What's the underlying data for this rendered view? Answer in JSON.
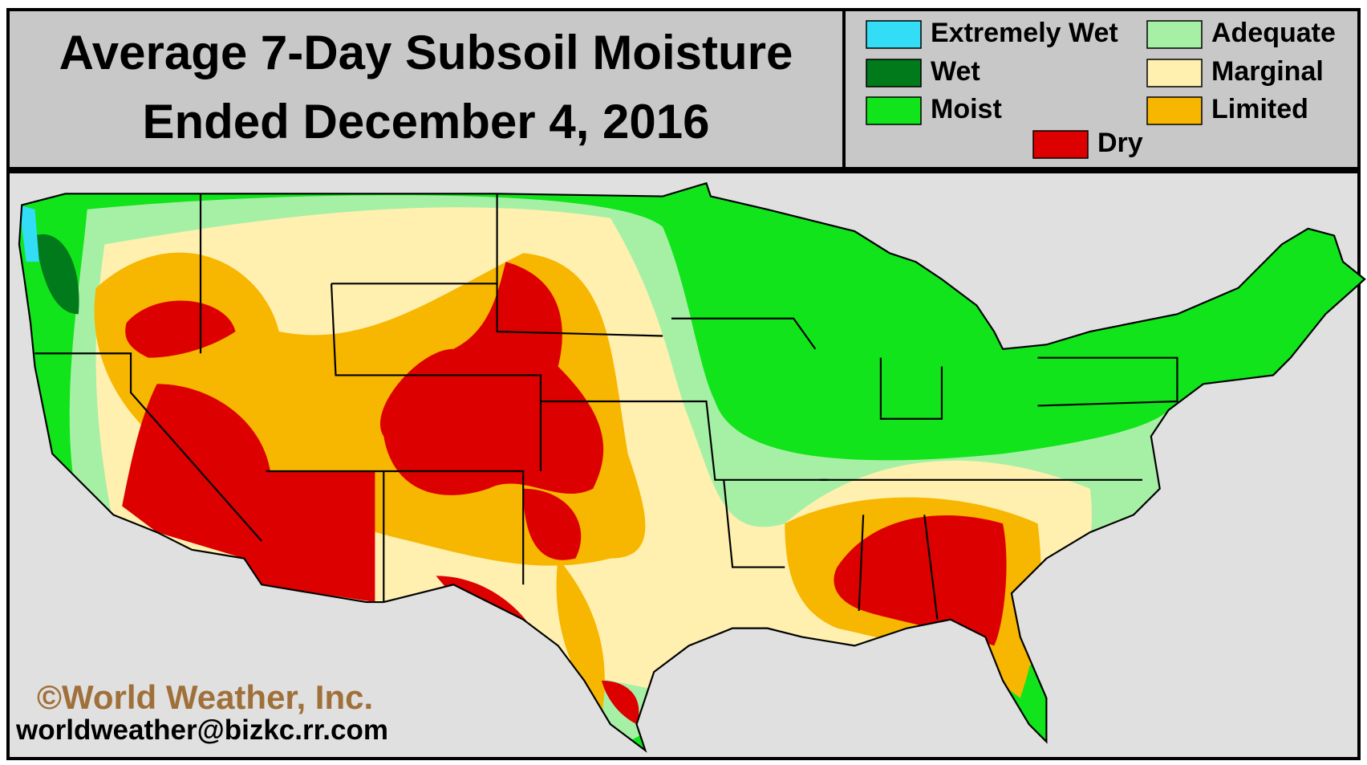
{
  "header": {
    "title_lines": [
      "Average 7-Day Subsoil Moisture",
      "Ended December 4, 2016"
    ]
  },
  "legend": [
    {
      "label": "Extremely Wet",
      "color": "#33ddf5"
    },
    {
      "label": "Wet",
      "color": "#007a1a"
    },
    {
      "label": "Moist",
      "color": "#11e41b"
    },
    {
      "label": "Adequate",
      "color": "#a6f0a6"
    },
    {
      "label": "Marginal",
      "color": "#fff0b0"
    },
    {
      "label": "Limited",
      "color": "#f7b600"
    },
    {
      "label": "Dry",
      "color": "#dd0000"
    }
  ],
  "credit": "©World Weather, Inc.",
  "email": "worldweather@bizkc.rr.com"
}
